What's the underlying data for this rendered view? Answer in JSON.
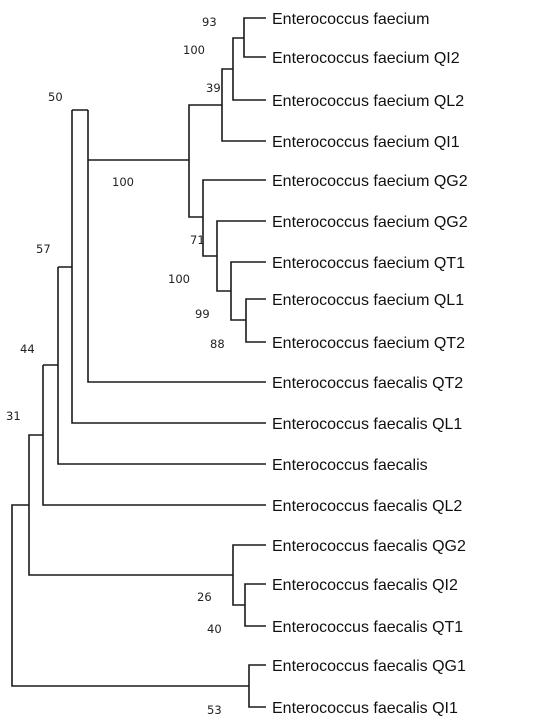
{
  "tree": {
    "taxa": [
      "Enterococcus faecium",
      "Enterococcus faecium QI2",
      "Enterococcus faecium QL2",
      "Enterococcus faecium QI1",
      "Enterococcus faecium QG2",
      "Enterococcus faecium QG2",
      "Enterococcus faecium QT1",
      "Enterococcus faecium QL1",
      "Enterococcus faecium QT2",
      "Enterococcus faecalis QT2",
      "Enterococcus faecalis QL1",
      "Enterococcus faecalis",
      "Enterococcus faecalis QL2",
      "Enterococcus faecalis QG2",
      "Enterococcus faecalis QI2",
      "Enterococcus faecalis QT1",
      "Enterococcus faecalis QG1",
      "Enterococcus faecalis QI1"
    ],
    "bootstrap": {
      "faecium_pair": "93",
      "faecium_qi2_clade": "100",
      "faecium_ql2_clade": "39",
      "faecium_main_clade": "100",
      "faecium_qg2_clade": "71",
      "faecium_qt1_clade": "100",
      "faecium_ql1_qt2_clade": "99",
      "faecium_ql1_qt2_pair": "88",
      "root_faecalis_qt2": "50",
      "faecalis_ql1_node": "57",
      "faecalis_node": "44",
      "faecalis_ql2_node": "31",
      "faecalis_qg2_clade": "26",
      "faecalis_qi2_qt1_pair": "40",
      "faecalis_qg1_qi1_pair": "53"
    }
  }
}
